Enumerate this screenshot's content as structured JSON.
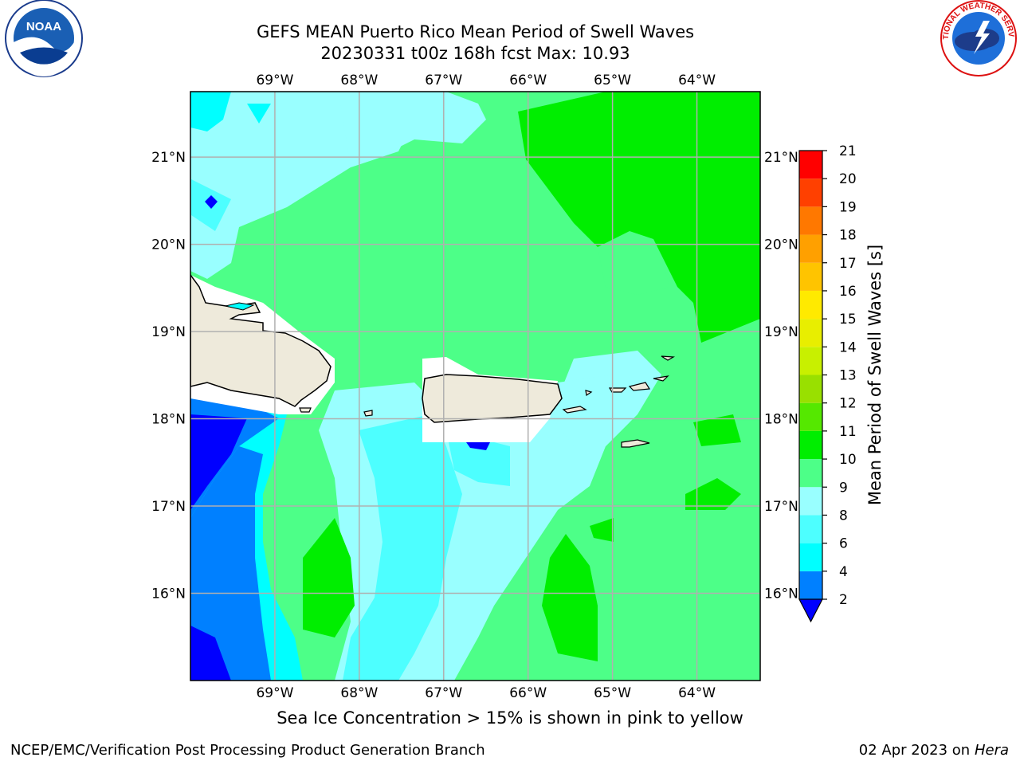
{
  "title": {
    "line1": "GEFS MEAN Puerto Rico Mean Period of Swell Waves",
    "line2": "20230331 t00z 168h fcst   Max: 10.93"
  },
  "map": {
    "lon_range": [
      -70.0,
      -63.25
    ],
    "lat_range": [
      15.0,
      21.75
    ],
    "lon_ticks": [
      "69°W",
      "68°W",
      "67°W",
      "66°W",
      "65°W",
      "64°W"
    ],
    "lat_ticks": [
      "16°N",
      "17°N",
      "18°N",
      "19°N",
      "20°N",
      "21°N"
    ],
    "grid": true,
    "land_color": "#eeeadb"
  },
  "colorbar": {
    "label": "Mean Period of Swell Waves [s]",
    "ticks": [
      "2",
      "4",
      "6",
      "8",
      "9",
      "10",
      "11",
      "12",
      "13",
      "14",
      "15",
      "16",
      "17",
      "18",
      "19",
      "20",
      "21"
    ],
    "colors": [
      "#0000ff",
      "#0080ff",
      "#00ffff",
      "#4dffff",
      "#99ffff",
      "#4dff88",
      "#00ee00",
      "#55e800",
      "#99e000",
      "#c8f000",
      "#e8ee00",
      "#ffea00",
      "#ffc400",
      "#ffa000",
      "#ff7800",
      "#ff4000",
      "#ff0000"
    ],
    "extend": "min"
  },
  "caption": "Sea Ice Concentration > 15% is shown in pink to yellow",
  "footer": {
    "left": "NCEP/EMC/Verification Post Processing Product Generation Branch",
    "date": "02 Apr 2023 on ",
    "machine": "Hera"
  },
  "logos": {
    "left_text": "NOAA",
    "right_text": "NATIONAL WEATHER SERVICE"
  }
}
